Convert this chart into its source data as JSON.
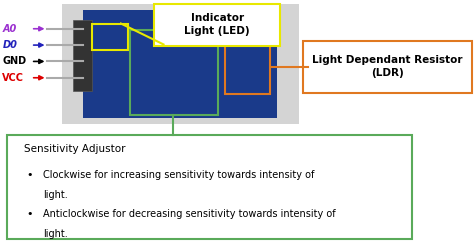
{
  "bg_color": "#ffffff",
  "pins": [
    {
      "label": "A0",
      "color": "#9b30d0"
    },
    {
      "label": "D0",
      "color": "#2222bb"
    },
    {
      "label": "GND",
      "color": "#000000"
    },
    {
      "label": "VCC",
      "color": "#dd0000"
    }
  ],
  "indicator_label": "Indicator\nLight (LED)",
  "indicator_box_color": "#e8e800",
  "ldr_label": "Light Dependant Resistor\n(LDR)",
  "ldr_box_color": "#e07820",
  "sensitivity_title": "Sensitivity Adjustor",
  "bullet1_line1": "Clockwise for increasing sensitivity towards intensity of",
  "bullet1_line2": "light.",
  "bullet2_line1": "Anticlockwise for decreasing sensitivity towards intensity of",
  "bullet2_line2": "light.",
  "sensitivity_box_color": "#5aaa5a",
  "text_color": "#000000",
  "photo_bg": "#cccccc",
  "pcb_color": "#1a3a8a",
  "pcb_dark": "#122860"
}
